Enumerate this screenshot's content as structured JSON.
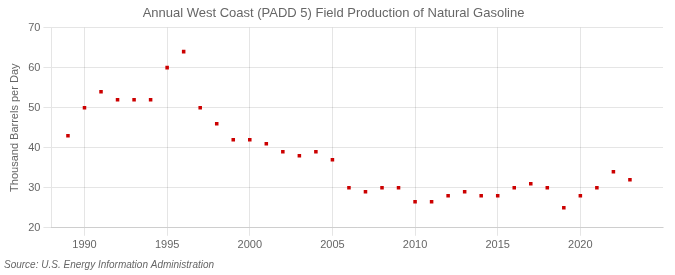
{
  "chart_data": {
    "type": "scatter",
    "title": "Annual West Coast (PADD 5) Field Production of Natural Gasoline",
    "ylabel": "Thousand Barrels per Day",
    "annotation": "Source: U.S. Energy Information Administration",
    "x": [
      1989,
      1990,
      1991,
      1992,
      1993,
      1994,
      1995,
      1996,
      1997,
      1998,
      1999,
      2000,
      2001,
      2002,
      2003,
      2004,
      2005,
      2006,
      2007,
      2008,
      2009,
      2010,
      2011,
      2012,
      2013,
      2014,
      2015,
      2016,
      2017,
      2018,
      2019,
      2020,
      2021,
      2022,
      2023
    ],
    "values": [
      43,
      50,
      54,
      52,
      52,
      52,
      60,
      64,
      50,
      46,
      42,
      42,
      41,
      39,
      38,
      39,
      37,
      30,
      29,
      30,
      30,
      26.5,
      26.5,
      28,
      29,
      28,
      28,
      30,
      31,
      30,
      25,
      28,
      30,
      34,
      32
    ],
    "color": "#cc0000",
    "marker": "square",
    "xlim": [
      1988,
      2025
    ],
    "xticks": [
      1990,
      1995,
      2000,
      2005,
      2010,
      2015,
      2020
    ],
    "ylim": [
      20,
      70
    ],
    "yticks": [
      20,
      30,
      40,
      50,
      60,
      70
    ],
    "grid": true
  }
}
